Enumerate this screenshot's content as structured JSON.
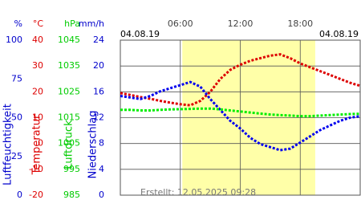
{
  "chart_data": {
    "type": "line",
    "date_left": "04.08.19",
    "date_right": "04.08.19",
    "created": "Erstellt: 12.05.2025 09:28",
    "x": [
      0,
      1,
      2,
      3,
      4,
      5,
      6,
      7,
      8,
      9,
      10,
      11,
      12,
      13,
      14,
      15,
      16,
      17,
      18,
      19,
      20,
      21,
      22,
      23,
      24
    ],
    "xlim": [
      0,
      24
    ],
    "xticks": [
      {
        "value": 6,
        "label": "06:00"
      },
      {
        "value": 12,
        "label": "12:00"
      },
      {
        "value": 18,
        "label": "18:00"
      }
    ],
    "daylight": [
      6.2,
      19.5
    ],
    "axes": [
      {
        "unit": "%",
        "title": "Luftfeuchtigkeit",
        "color": "#0000cc",
        "lim": [
          0,
          100
        ],
        "ticks": [
          0,
          25,
          50,
          75,
          100
        ]
      },
      {
        "unit": "°C",
        "title": "Temperatur",
        "color": "#dd0000",
        "lim": [
          -20,
          40
        ],
        "ticks": [
          -20,
          -10,
          0,
          10,
          20,
          30,
          40
        ]
      },
      {
        "unit": "hPa",
        "title": "Luftdruck",
        "color": "#00cc00",
        "lim": [
          985,
          1045
        ],
        "ticks": [
          985,
          995,
          1005,
          1015,
          1025,
          1035,
          1045
        ]
      },
      {
        "unit": "mm/h",
        "title": "Niederschlag",
        "color": "#0000cc",
        "lim": [
          0,
          24
        ],
        "ticks": [
          0,
          4,
          8,
          12,
          16,
          20,
          24
        ]
      }
    ],
    "grid_axis": 1,
    "series": [
      {
        "axis": 1,
        "color": "#dd0000",
        "values": [
          19.5,
          18.8,
          18,
          17.3,
          16.5,
          15.8,
          15.2,
          14.8,
          16.5,
          20,
          25,
          28.5,
          30.5,
          32,
          33,
          34,
          34.5,
          33,
          31,
          29.5,
          28,
          26.5,
          25,
          23.5,
          22.3
        ]
      },
      {
        "axis": 0,
        "color": "#0000ee",
        "values": [
          64,
          63,
          62,
          64,
          67,
          69,
          71,
          73,
          70,
          62,
          55,
          48,
          43,
          37,
          33,
          31,
          29,
          30,
          34,
          38,
          42,
          45,
          48,
          50,
          51
        ]
      },
      {
        "axis": 2,
        "color": "#00ee00",
        "values": [
          1018,
          1018,
          1017.8,
          1017.8,
          1018,
          1018.2,
          1018.3,
          1018.4,
          1018.5,
          1018.5,
          1018.2,
          1017.8,
          1017.4,
          1017,
          1016.6,
          1016.2,
          1016,
          1015.8,
          1015.6,
          1015.6,
          1015.8,
          1016,
          1016.2,
          1016.4,
          1016.5
        ]
      }
    ]
  }
}
